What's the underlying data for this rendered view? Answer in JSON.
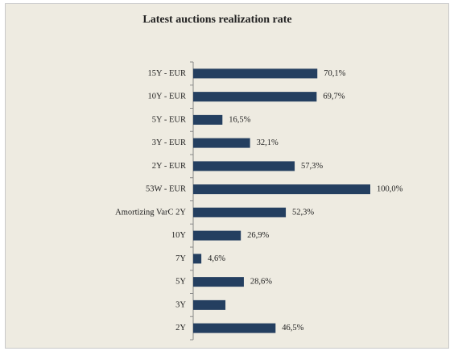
{
  "chart_data": {
    "type": "bar",
    "orientation": "horizontal",
    "title": "Latest auctions realization rate",
    "categories": [
      "15Y - EUR",
      "10Y - EUR",
      "5Y - EUR",
      "3Y - EUR",
      "2Y - EUR",
      "53W - EUR",
      "Amortizing VarC 2Y",
      "10Y",
      "7Y",
      "5Y",
      "3Y",
      "2Y"
    ],
    "values": [
      70.1,
      69.7,
      16.5,
      32.1,
      57.3,
      100.0,
      52.3,
      26.9,
      4.6,
      28.6,
      18.2,
      46.5
    ],
    "value_labels": [
      "70,1%",
      "69,7%",
      "16,5%",
      "32,1%",
      "57,3%",
      "100,0%",
      "52,3%",
      "26,9%",
      "4,6%",
      "28,6%",
      null,
      "46,5%"
    ],
    "color": "#243f60"
  }
}
